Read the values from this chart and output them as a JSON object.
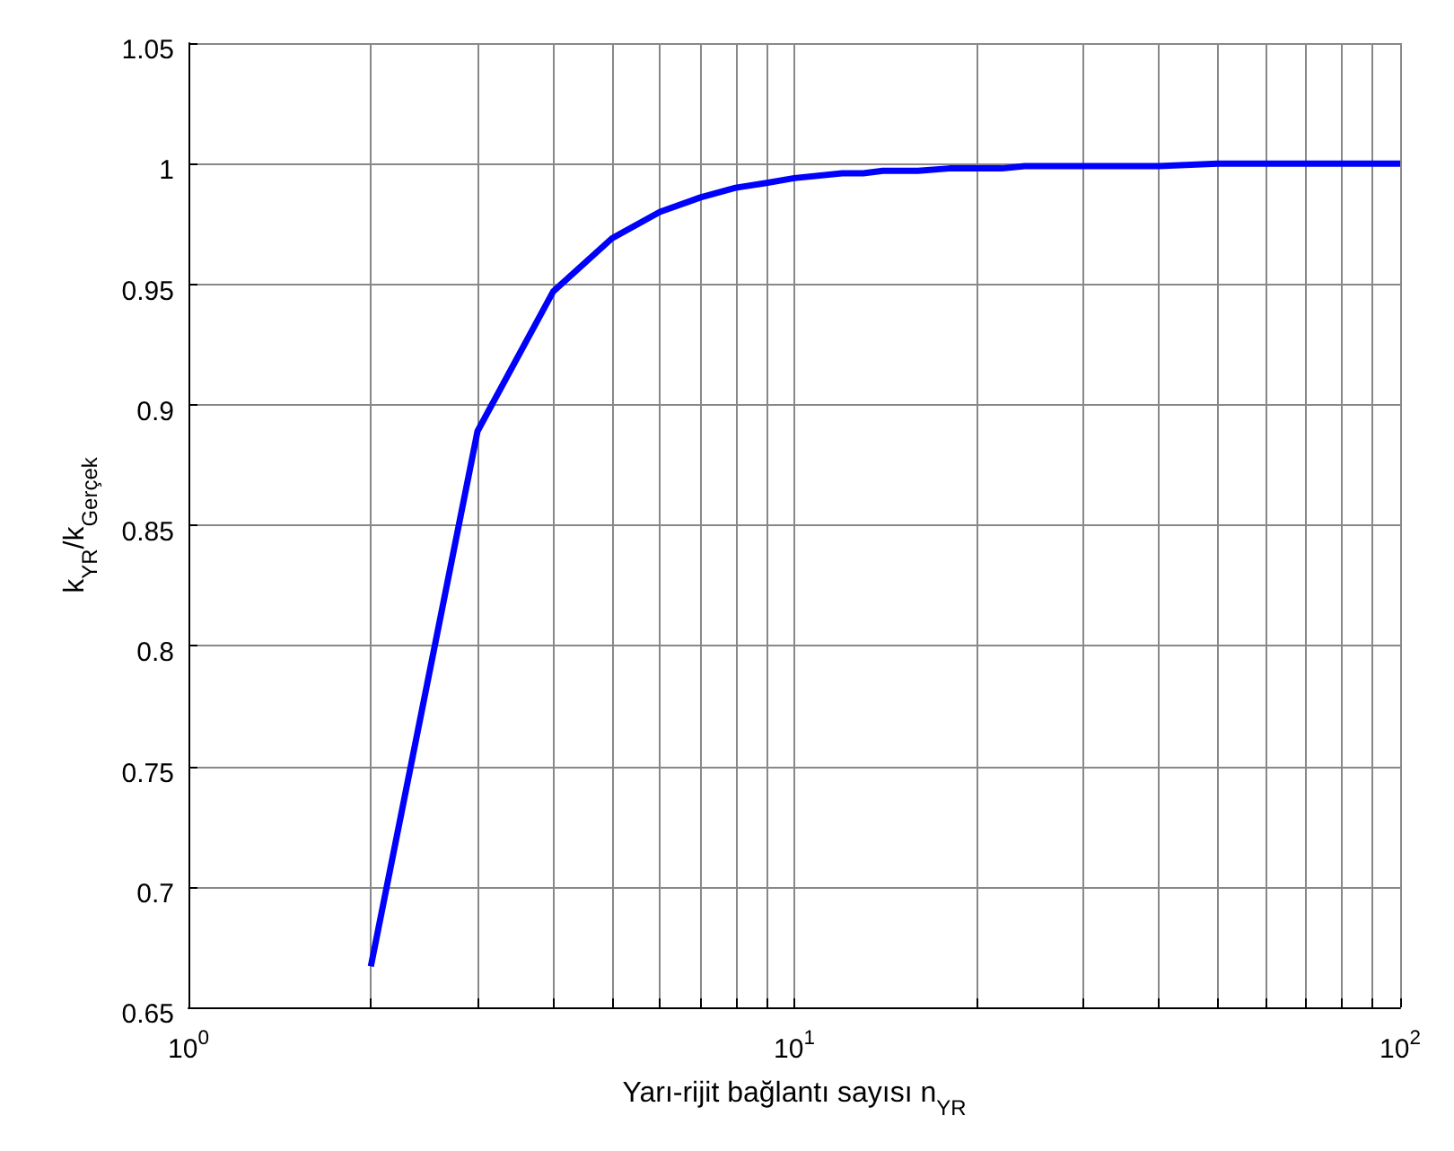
{
  "chart_data": {
    "type": "line",
    "xlabel": "Yarı-rijit bağlantı sayısı n$_{YR}$",
    "ylabel": "k$_{YR}$/k$_{Gerçek}$",
    "x": [
      2,
      3,
      4,
      5,
      6,
      7,
      8,
      9,
      10,
      12,
      13,
      14,
      16,
      18,
      20,
      22,
      24,
      30,
      40,
      50,
      60,
      70,
      80,
      90,
      100
    ],
    "series": [
      {
        "color": "#0000ff",
        "values": [
          0.667,
          0.889,
          0.947,
          0.969,
          0.98,
          0.986,
          0.99,
          0.992,
          0.994,
          0.996,
          0.996,
          0.997,
          0.997,
          0.998,
          0.998,
          0.998,
          0.999,
          0.999,
          0.999,
          1.0,
          1.0,
          1.0,
          1.0,
          1.0,
          1.0
        ]
      }
    ],
    "log": "x",
    "xlim": [
      1,
      100
    ],
    "xticks": [
      {
        "value": 1,
        "label": "10$^{0}$"
      },
      {
        "value": 2,
        "label": null
      },
      {
        "value": 3,
        "label": null
      },
      {
        "value": 4,
        "label": null
      },
      {
        "value": 5,
        "label": null
      },
      {
        "value": 6,
        "label": null
      },
      {
        "value": 7,
        "label": null
      },
      {
        "value": 8,
        "label": null
      },
      {
        "value": 9,
        "label": null
      },
      {
        "value": 10,
        "label": "10$^{1}$"
      },
      {
        "value": 20,
        "label": null
      },
      {
        "value": 30,
        "label": null
      },
      {
        "value": 40,
        "label": null
      },
      {
        "value": 50,
        "label": null
      },
      {
        "value": 60,
        "label": null
      },
      {
        "value": 70,
        "label": null
      },
      {
        "value": 80,
        "label": null
      },
      {
        "value": 90,
        "label": null
      },
      {
        "value": 100,
        "label": "10$^{2}$"
      }
    ],
    "ylim": [
      0.65,
      1.05
    ],
    "yticks": [
      0.65,
      0.7,
      0.75,
      0.8,
      0.85,
      0.9,
      0.95,
      1,
      1.05
    ],
    "grid": true,
    "marker": "none",
    "line_style": "solid"
  }
}
